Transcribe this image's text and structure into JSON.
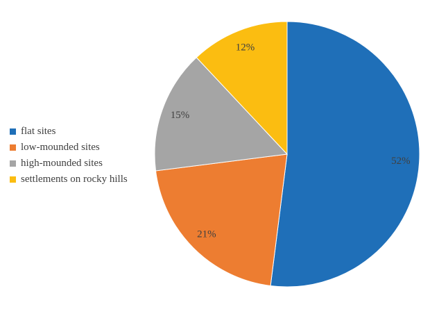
{
  "chart_data": {
    "type": "pie",
    "categories": [
      "flat sites",
      "low-mounded sites",
      "high-mounded sites",
      "settlements on rocky hills"
    ],
    "values": [
      52,
      21,
      15,
      12
    ],
    "value_labels": [
      "52%",
      "21%",
      "15%",
      "12%"
    ],
    "colors": [
      "#1F6FB8",
      "#ED7D31",
      "#A5A5A5",
      "#FBBD11"
    ],
    "start_angle_deg": 0,
    "direction": "clockwise",
    "legend_position": "left",
    "title": ""
  }
}
